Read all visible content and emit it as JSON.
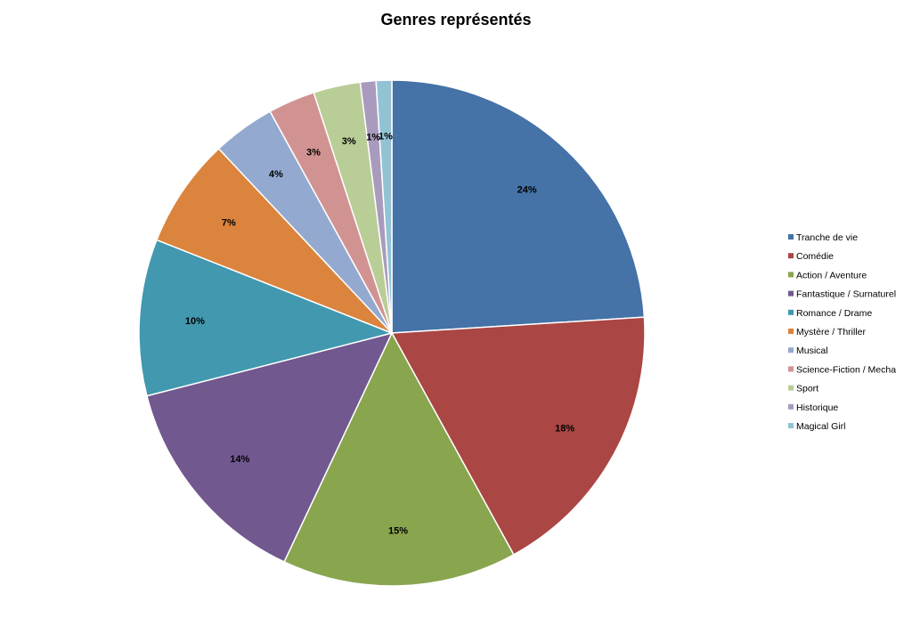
{
  "chart_data": {
    "type": "pie",
    "title": "Genres représentés",
    "categories": [
      "Tranche de vie",
      "Comédie",
      "Action / Aventure",
      "Fantastique / Surnaturel",
      "Romance / Drame",
      "Mystère / Thriller",
      "Musical",
      "Science-Fiction / Mecha",
      "Sport",
      "Historique",
      "Magical Girl"
    ],
    "values": [
      24,
      18,
      15,
      14,
      10,
      7,
      4,
      3,
      3,
      1,
      1
    ],
    "data_labels": [
      "24%",
      "18%",
      "15%",
      "14%",
      "10%",
      "7%",
      "4%",
      "3%",
      "3%",
      "1%",
      "1%"
    ],
    "colors": [
      "#4572a7",
      "#aa4643",
      "#89a54e",
      "#71588f",
      "#4198af",
      "#db843d",
      "#93a9cf",
      "#d19392",
      "#b9cd96",
      "#a99bbd",
      "#92c3d4"
    ],
    "legend_position": "right",
    "start_angle_deg": 0,
    "direction": "clockwise"
  }
}
